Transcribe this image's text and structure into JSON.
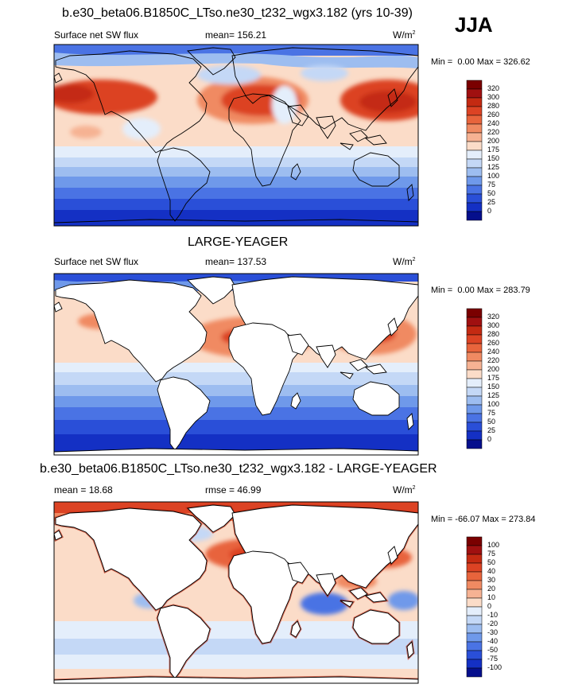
{
  "season": "JJA",
  "chart_data": [
    {
      "type": "heatmap",
      "title": "b.e30_beta06.B1850C_LTso.ne30_t232_wgx3.182 (yrs 10-39)",
      "left_label": "Surface net SW flux",
      "center_label": "mean= 156.21",
      "units": "W/m",
      "units_exp": "2",
      "min_label": "Min =",
      "min_value": "0.00",
      "max_label": "Max =",
      "max_value": "326.62",
      "ocean_only": false,
      "colorbar": [
        "320",
        "300",
        "280",
        "260",
        "240",
        "220",
        "200",
        "175",
        "150",
        "125",
        "100",
        "75",
        "50",
        "25",
        "0"
      ]
    },
    {
      "type": "heatmap",
      "title": "LARGE-YEAGER",
      "left_label": "Surface net SW flux",
      "center_label": "mean= 137.53",
      "units": "W/m",
      "units_exp": "2",
      "min_label": "Min =",
      "min_value": "0.00",
      "max_label": "Max =",
      "max_value": "283.79",
      "ocean_only": true,
      "colorbar": [
        "320",
        "300",
        "280",
        "260",
        "240",
        "220",
        "200",
        "175",
        "150",
        "125",
        "100",
        "75",
        "50",
        "25",
        "0"
      ]
    },
    {
      "type": "heatmap",
      "title": "b.e30_beta06.B1850C_LTso.ne30_t232_wgx3.182 - LARGE-YEAGER",
      "left_label": "mean =  18.68",
      "center_label": "rmse =  46.99",
      "units": "W/m",
      "units_exp": "2",
      "min_label": "Min =",
      "min_value": "-66.07",
      "max_label": "Max =",
      "max_value": "273.84",
      "ocean_only": true,
      "colorbar": [
        "100",
        "75",
        "50",
        "40",
        "30",
        "20",
        "10",
        "0",
        "-10",
        "-20",
        "-30",
        "-40",
        "-50",
        "-75",
        "-100"
      ]
    }
  ],
  "colors": {
    "palette": [
      "#7a0000",
      "#a01010",
      "#c42a12",
      "#dc4324",
      "#e8643c",
      "#f08a62",
      "#f6b293",
      "#fbdcc8",
      "#e4eefb",
      "#c4d8f6",
      "#9dbdf0",
      "#6f99ea",
      "#4a73e4",
      "#2a4fd8",
      "#1430c4",
      "#050f8c"
    ],
    "continent_stroke": "#000000",
    "land_fill": "#ffffff"
  }
}
